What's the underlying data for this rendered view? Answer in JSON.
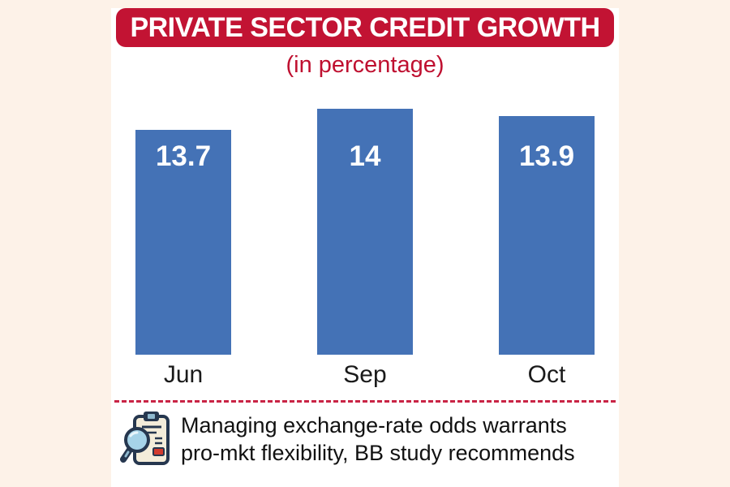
{
  "header": {
    "title": "PRIVATE SECTOR CREDIT GROWTH",
    "subtitle": "(in percentage)"
  },
  "chart_data": {
    "type": "bar",
    "title": "PRIVATE SECTOR CREDIT GROWTH",
    "subtitle": "(in percentage)",
    "categories": [
      "Jun",
      "Sep",
      "Oct"
    ],
    "values": [
      13.7,
      14,
      13.9
    ],
    "value_labels": [
      "13.7",
      "14",
      "13.9"
    ],
    "unit": "percent",
    "ylim": [
      10.5,
      14
    ],
    "grid": false,
    "legend": false,
    "bar_color": "#4472b6",
    "value_label_color": "#ffffff"
  },
  "footer": {
    "icon": "clipboard-magnifier-icon",
    "line1": "Managing exchange-rate odds warrants",
    "line2": "pro-mkt flexibility, BB study recommends"
  },
  "colors": {
    "accent_red": "#c21333",
    "bar_blue": "#4472b6",
    "background_cream": "#fdf2e8",
    "panel_white": "#ffffff",
    "text_black": "#111111"
  }
}
